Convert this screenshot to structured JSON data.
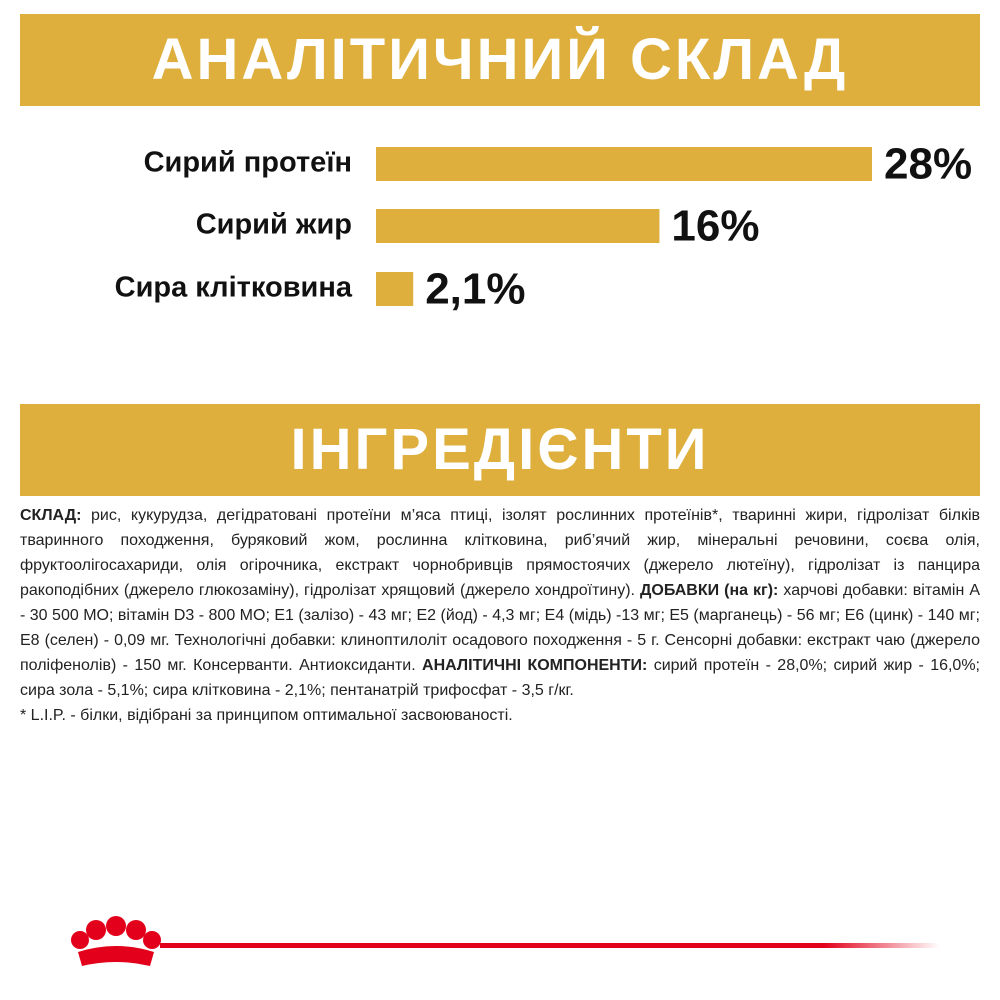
{
  "chart_data": {
    "type": "bar",
    "title": "АНАЛІТИЧНИЙ СКЛАД",
    "categories": [
      "Сирий протеїн",
      "Сирий жир",
      "Сира клітковина"
    ],
    "values": [
      28,
      16,
      2.1
    ],
    "value_labels": [
      "28%",
      "16%",
      "2,1%"
    ],
    "color": "#deaf3c"
  },
  "ingredients": {
    "title": "ІНГРЕДІЄНТИ",
    "segments": [
      {
        "text": "СКЛАД:",
        "bold": true
      },
      {
        "text": " рис, кукурудза, дегідратовані протеїни м’яса птиці, ізолят рослинних протеїнів*, тваринні жири, гідролізат білків тваринного походження, буряковий жом, рослинна клітковина, риб’ячий жир, мінеральні речовини, соєва олія, фруктоолігосахариди, олія огірочника, екстракт чорнобривців прямостоячих (джерело лютеїну), гідролізат із панцира ракоподібних (джерело глюкозаміну), гідролізат хрящовий (джерело хондроїтину). "
      },
      {
        "text": "ДОБАВКИ (на кг):",
        "bold": true
      },
      {
        "text": " харчові добавки: вітамін А - 30 500 МО; вітамін D3 - 800 МО; Е1 (залізо) - 43 мг; Е2 (йод) - 4,3 мг; Е4 (мідь) -13 мг; Е5 (марганець) - 56 мг; Е6 (цинк) - 140 мг; Е8 (селен) - 0,09 мг. Технологічні добавки: клиноптилоліт осадового походження - 5 г. Сенсорні добавки: екстракт чаю (джерело поліфенолів) - 150 мг. Консерванти. Антиоксиданти. "
      },
      {
        "text": "АНАЛІТИЧНІ КОМПОНЕНТИ:",
        "bold": true
      },
      {
        "text": " сирий протеїн - 28,0%; сирий жир - 16,0%; сира зола - 5,1%; сира клітковина - 2,1%; пентанатрій трифосфат - 3,5 г/кг."
      }
    ],
    "footnote": "* L.I.P. - білки, відібрані за принципом оптимальної засвоюваності."
  }
}
